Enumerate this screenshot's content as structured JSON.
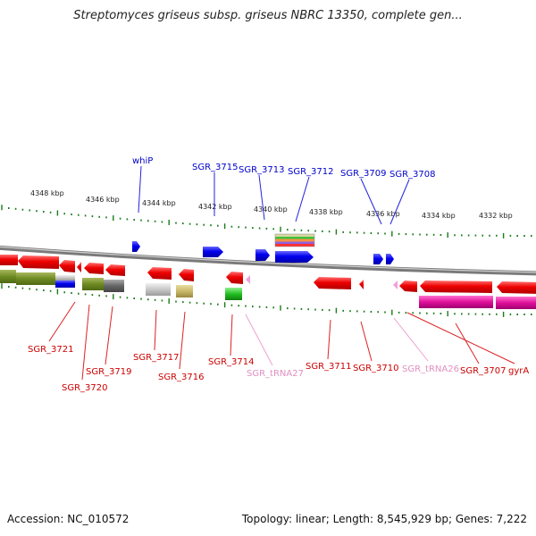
{
  "title": "Streptomyces griseus subsp. griseus NBRC 13350, complete gen...",
  "footer": {
    "accession": "Accession: NC_010572",
    "summary": "Topology: linear; Length: 8,545,929 bp; Genes: 7,222"
  },
  "colors": {
    "top_label": "#0000cc",
    "bottom_label": "#cc0000",
    "trna_label": "#e090c0",
    "tick": "#1a7a1a",
    "backbone": "#8a8a8a"
  },
  "scale_labels": [
    "4348 kbp",
    "4346 kbp",
    "4344 kbp",
    "4342 kbp",
    "4340 kbp",
    "4338 kbp",
    "4336 kbp",
    "4334 kbp",
    "4332 kbp"
  ],
  "top_genes": [
    "whiP",
    "SGR_3715",
    "SGR_3713",
    "SGR_3712",
    "SGR_3709",
    "SGR_3708"
  ],
  "bottom_genes": [
    "SGR_3721",
    "SGR_3720",
    "SGR_3719",
    "SGR_3717",
    "SGR_3716",
    "SGR_3714",
    "SGR_tRNA27",
    "SGR_3711",
    "SGR_3710",
    "SGR_tRNA26",
    "SGR_3707",
    "gyrA"
  ]
}
